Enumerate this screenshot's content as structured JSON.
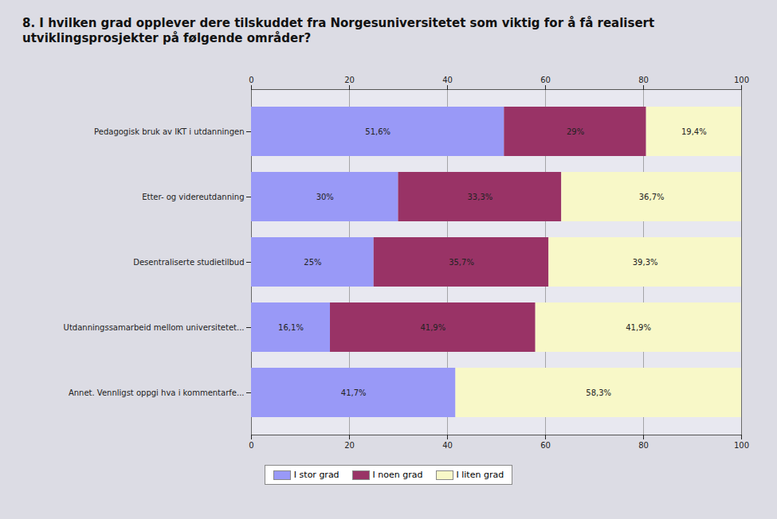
{
  "chart_data": {
    "type": "bar",
    "title": "8. I hvilken grad opplever dere tilskuddet fra Norgesuniversitetet som viktig for å få realisert utviklingsprosjekter på følgende områder?",
    "orientation": "horizontal",
    "stacked": true,
    "categories": [
      "Pedagogisk bruk av IKT i utdanningen",
      "Etter- og videreutdanning",
      "Desentraliserte studietilbud",
      "Utdanningssamarbeid mellom universitetet...",
      "Annet. Vennligst oppgi hva i kommentarfe..."
    ],
    "series": [
      {
        "name": "I stor grad",
        "color": "#9999f7",
        "values": [
          51.6,
          30,
          25,
          16.1,
          41.7
        ],
        "value_labels": [
          "51,6%",
          "30%",
          "25%",
          "16,1%",
          "41,7%"
        ]
      },
      {
        "name": "I noen grad",
        "color": "#993366",
        "values": [
          29,
          33.3,
          35.7,
          41.9,
          null
        ],
        "value_labels": [
          "29%",
          "33,3%",
          "35,7%",
          "41,9%",
          null
        ]
      },
      {
        "name": "I liten grad",
        "color": "#f8f8c8",
        "values": [
          19.4,
          36.7,
          39.3,
          41.9,
          58.3
        ],
        "value_labels": [
          "19,4%",
          "36,7%",
          "39,3%",
          "41,9%",
          "58,3%"
        ]
      }
    ],
    "xlim": [
      0,
      100
    ],
    "xticks": [
      0,
      20,
      40,
      60,
      80,
      100
    ],
    "grid": true,
    "data_labels": true,
    "legend": "bottom"
  }
}
